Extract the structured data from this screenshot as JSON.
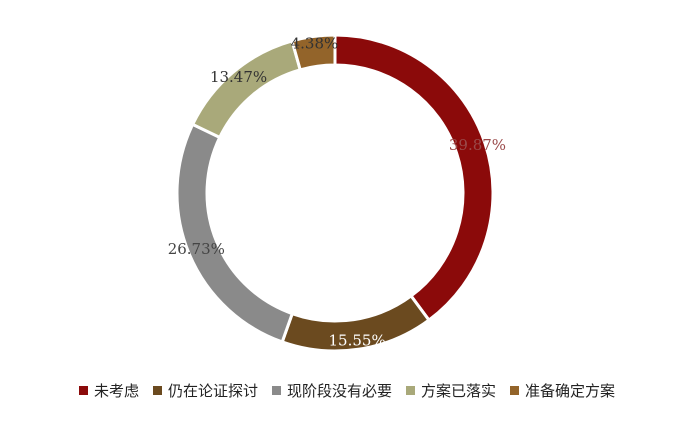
{
  "chart_data": {
    "type": "pie",
    "variant": "donut",
    "categories": [
      "未考虑",
      "仍在论证探讨",
      "现阶段没有必要",
      "方案已落实",
      "准备确定方案"
    ],
    "values": [
      39.87,
      15.55,
      26.73,
      13.47,
      4.38
    ],
    "value_labels": [
      "39.87%",
      "15.55%",
      "26.73%",
      "13.47%",
      "4.38%"
    ],
    "colors": [
      "#8b0a0a",
      "#6b4a1f",
      "#8a8a8a",
      "#a9a97a",
      "#93642a"
    ],
    "label_colors": [
      "#9a4a4a",
      "#ffffff",
      "#444444",
      "#333333",
      "#333333"
    ],
    "legend_position": "bottom",
    "start_angle_deg": 0,
    "direction": "clockwise"
  }
}
